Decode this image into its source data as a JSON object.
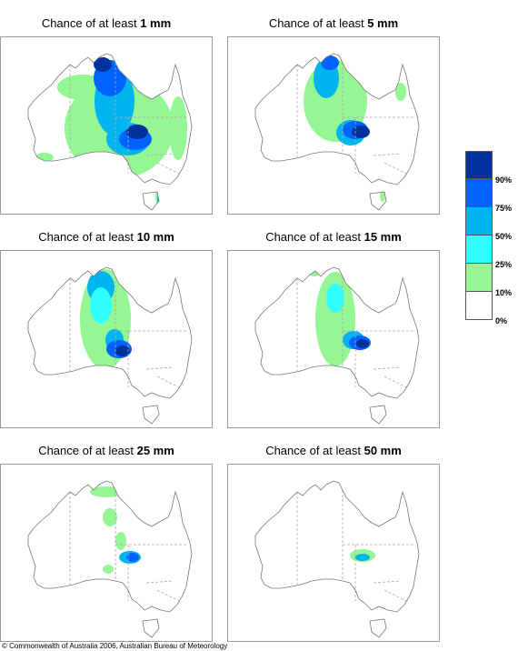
{
  "panels": [
    {
      "prefix": "Chance of at least ",
      "amount": "1 mm"
    },
    {
      "prefix": "Chance of at least ",
      "amount": "5 mm"
    },
    {
      "prefix": "Chance of at least ",
      "amount": "10 mm"
    },
    {
      "prefix": "Chance of at least ",
      "amount": "15 mm"
    },
    {
      "prefix": "Chance of at least ",
      "amount": "25 mm"
    },
    {
      "prefix": "Chance of at least ",
      "amount": "50 mm"
    }
  ],
  "legend": {
    "colors": [
      "#00319c",
      "#0063ff",
      "#00b5ef",
      "#31ffff",
      "#94f794",
      "#ffffff"
    ],
    "labels": [
      "90%",
      "75%",
      "50%",
      "25%",
      "10%",
      "0%"
    ]
  },
  "colors": {
    "green": "#94f794",
    "cyan": "#31ffff",
    "sky": "#00b5ef",
    "blue": "#0063ff",
    "navy": "#00319c"
  },
  "copyright": "© Commonwealth of Australia 2006, Australian Bureau of Meteorology"
}
